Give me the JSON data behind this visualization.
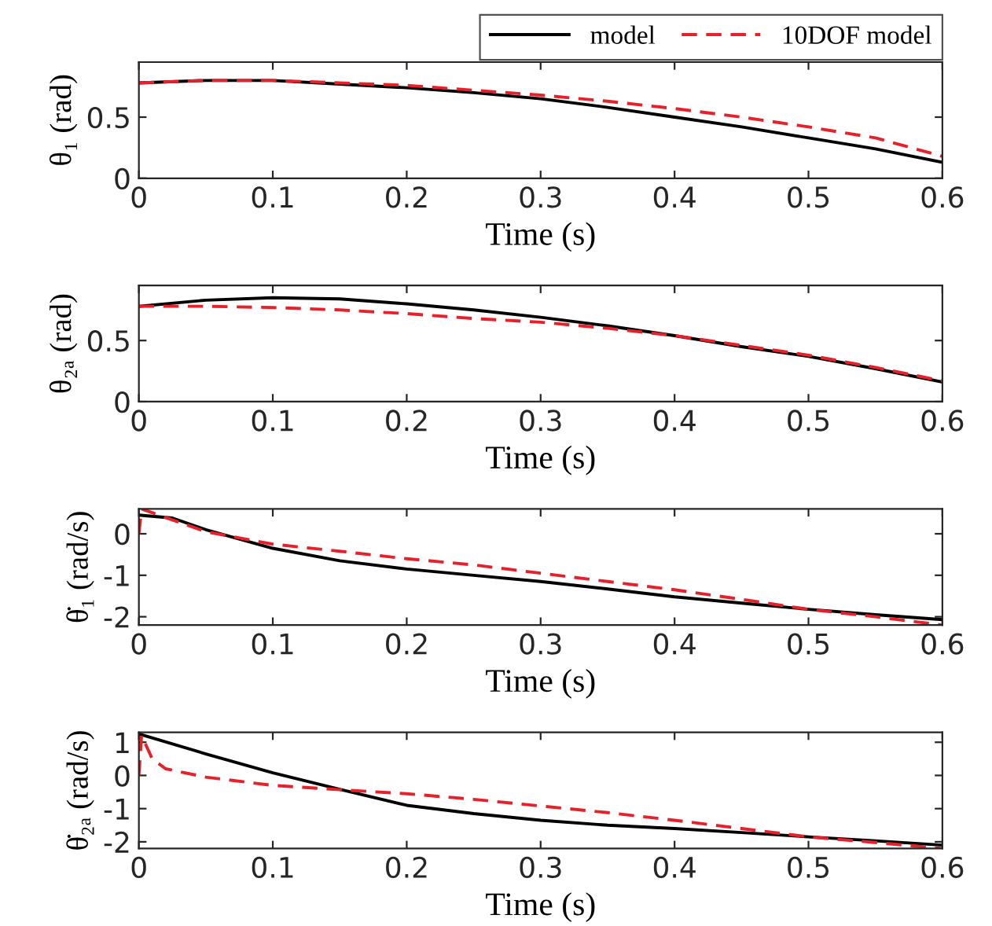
{
  "chart_data": [
    {
      "type": "line",
      "xlabel": "Time (s)",
      "ylabel": "θ₁ (rad)",
      "xlim": [
        0,
        0.6
      ],
      "xticks": [
        0,
        0.1,
        0.2,
        0.3,
        0.4,
        0.5,
        0.6
      ],
      "ylim": [
        0,
        0.95
      ],
      "yticks": [
        0,
        0.5
      ],
      "grid": false,
      "legend": "top right",
      "series": [
        {
          "name": "model",
          "color": "#000000",
          "line_style": "solid",
          "x": [
            0,
            0.05,
            0.1,
            0.15,
            0.2,
            0.25,
            0.3,
            0.35,
            0.4,
            0.45,
            0.5,
            0.55,
            0.6
          ],
          "values": [
            0.78,
            0.8,
            0.8,
            0.77,
            0.74,
            0.7,
            0.65,
            0.58,
            0.5,
            0.42,
            0.33,
            0.24,
            0.13
          ]
        },
        {
          "name": "10DOF model",
          "color": "#e8202a",
          "line_style": "dashed",
          "x": [
            0,
            0.05,
            0.1,
            0.15,
            0.2,
            0.25,
            0.3,
            0.35,
            0.4,
            0.45,
            0.5,
            0.55,
            0.6
          ],
          "values": [
            0.78,
            0.8,
            0.8,
            0.78,
            0.76,
            0.72,
            0.68,
            0.63,
            0.57,
            0.5,
            0.42,
            0.33,
            0.18
          ]
        }
      ]
    },
    {
      "type": "line",
      "xlabel": "Time (s)",
      "ylabel": "θ₂ₐ (rad)",
      "xlim": [
        0,
        0.6
      ],
      "xticks": [
        0,
        0.1,
        0.2,
        0.3,
        0.4,
        0.5,
        0.6
      ],
      "ylim": [
        0,
        0.95
      ],
      "yticks": [
        0,
        0.5
      ],
      "grid": false,
      "series": [
        {
          "color": "#000000",
          "line_style": "solid",
          "x": [
            0,
            0.05,
            0.1,
            0.15,
            0.2,
            0.25,
            0.3,
            0.35,
            0.4,
            0.45,
            0.5,
            0.55,
            0.6
          ],
          "values": [
            0.78,
            0.83,
            0.85,
            0.84,
            0.8,
            0.75,
            0.69,
            0.62,
            0.54,
            0.45,
            0.37,
            0.27,
            0.16
          ]
        },
        {
          "color": "#e8202a",
          "line_style": "dashed",
          "x": [
            0,
            0.05,
            0.1,
            0.15,
            0.2,
            0.25,
            0.3,
            0.35,
            0.4,
            0.45,
            0.5,
            0.55,
            0.6
          ],
          "values": [
            0.78,
            0.78,
            0.77,
            0.75,
            0.72,
            0.68,
            0.65,
            0.6,
            0.54,
            0.46,
            0.38,
            0.28,
            0.17
          ]
        }
      ]
    },
    {
      "type": "line",
      "xlabel": "Time (s)",
      "ylabel": "θ̇₁ (rad/s)",
      "xlim": [
        0,
        0.6
      ],
      "xticks": [
        0,
        0.1,
        0.2,
        0.3,
        0.4,
        0.5,
        0.6
      ],
      "ylim": [
        -2.2,
        0.6
      ],
      "yticks": [
        -2,
        -1,
        0
      ],
      "grid": false,
      "series": [
        {
          "color": "#000000",
          "line_style": "solid",
          "x": [
            0,
            0.025,
            0.05,
            0.1,
            0.15,
            0.2,
            0.25,
            0.3,
            0.35,
            0.4,
            0.45,
            0.5,
            0.55,
            0.6
          ],
          "values": [
            0.45,
            0.38,
            0.1,
            -0.35,
            -0.65,
            -0.85,
            -1.0,
            -1.15,
            -1.33,
            -1.52,
            -1.67,
            -1.82,
            -1.95,
            -2.07
          ]
        },
        {
          "color": "#e8202a",
          "line_style": "dashed",
          "x": [
            0,
            0.002,
            0.05,
            0.1,
            0.15,
            0.2,
            0.25,
            0.3,
            0.35,
            0.4,
            0.45,
            0.5,
            0.55,
            0.6
          ],
          "values": [
            0.0,
            0.6,
            0.05,
            -0.25,
            -0.42,
            -0.6,
            -0.75,
            -0.95,
            -1.15,
            -1.35,
            -1.58,
            -1.82,
            -2.0,
            -2.2
          ]
        }
      ]
    },
    {
      "type": "line",
      "xlabel": "Time (s)",
      "ylabel": "θ̇₂ₐ (rad/s)",
      "xlim": [
        0,
        0.6
      ],
      "xticks": [
        0,
        0.1,
        0.2,
        0.3,
        0.4,
        0.5,
        0.6
      ],
      "ylim": [
        -2.2,
        1.3
      ],
      "yticks": [
        -2,
        -1,
        0,
        1
      ],
      "grid": false,
      "series": [
        {
          "color": "#000000",
          "line_style": "solid",
          "x": [
            0,
            0.05,
            0.1,
            0.15,
            0.2,
            0.25,
            0.3,
            0.35,
            0.4,
            0.45,
            0.5,
            0.55,
            0.6
          ],
          "values": [
            1.25,
            0.65,
            0.08,
            -0.42,
            -0.9,
            -1.15,
            -1.35,
            -1.5,
            -1.6,
            -1.72,
            -1.85,
            -1.97,
            -2.1
          ]
        },
        {
          "color": "#e8202a",
          "line_style": "dashed",
          "x": [
            0,
            0.002,
            0.01,
            0.02,
            0.05,
            0.1,
            0.15,
            0.2,
            0.25,
            0.3,
            0.35,
            0.4,
            0.45,
            0.5,
            0.55,
            0.6
          ],
          "values": [
            0.0,
            1.2,
            0.5,
            0.2,
            -0.05,
            -0.3,
            -0.43,
            -0.55,
            -0.72,
            -0.92,
            -1.12,
            -1.35,
            -1.6,
            -1.85,
            -2.02,
            -2.2
          ]
        }
      ]
    }
  ]
}
